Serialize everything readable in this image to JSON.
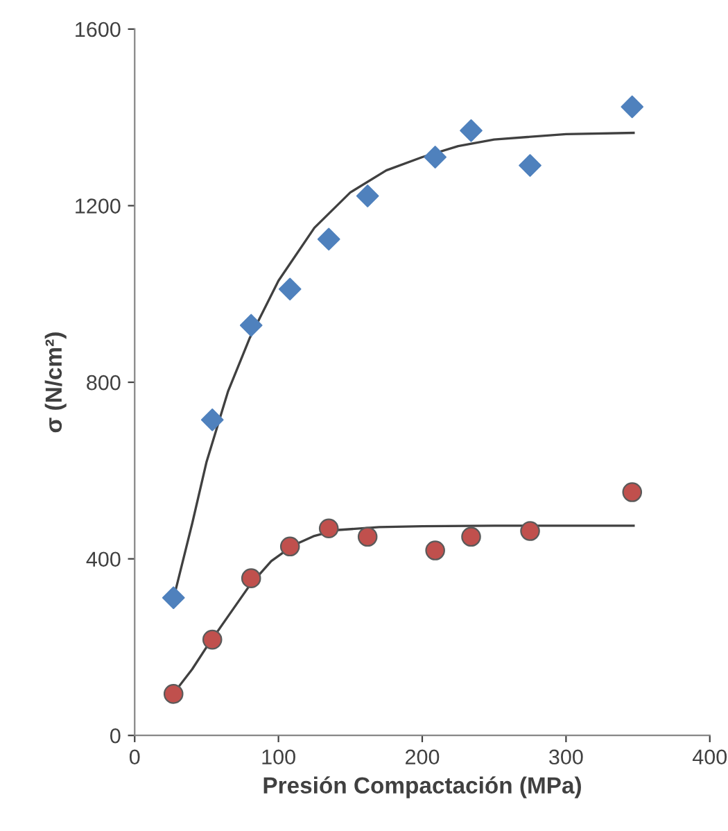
{
  "chart_data": {
    "type": "scatter",
    "xlabel": "Presión Compactación (MPa)",
    "ylabel": "σ (N/cm²)",
    "xlim": [
      0,
      400
    ],
    "ylim": [
      0,
      1600
    ],
    "xticks": [
      0,
      100,
      200,
      300,
      400
    ],
    "yticks": [
      0,
      400,
      800,
      1200,
      1600
    ],
    "grid": false,
    "legend": false,
    "series": [
      {
        "marker": "diamond",
        "color": "#4f81bd",
        "x": [
          27,
          54,
          81,
          108,
          135,
          162,
          209,
          234,
          275,
          346
        ],
        "values": [
          312,
          715,
          929,
          1011,
          1124,
          1222,
          1310,
          1370,
          1291,
          1424
        ]
      },
      {
        "marker": "circle",
        "color": "#c0504d",
        "x": [
          27,
          54,
          81,
          108,
          135,
          162,
          209,
          234,
          275,
          346
        ],
        "values": [
          94,
          217,
          356,
          428,
          469,
          450,
          419,
          450,
          463,
          551
        ]
      },
      {
        "type": "line",
        "marker": "none",
        "color": "#404040",
        "x": [
          27,
          40,
          50,
          65,
          80,
          100,
          125,
          150,
          175,
          200,
          225,
          250,
          300,
          347
        ],
        "values": [
          310,
          480,
          620,
          780,
          900,
          1030,
          1150,
          1230,
          1280,
          1310,
          1335,
          1350,
          1362,
          1365
        ]
      },
      {
        "type": "line",
        "marker": "none",
        "color": "#404040",
        "x": [
          27,
          40,
          50,
          65,
          80,
          95,
          110,
          125,
          140,
          170,
          200,
          250,
          347
        ],
        "values": [
          95,
          150,
          200,
          270,
          340,
          395,
          430,
          452,
          465,
          472,
          474,
          475,
          475
        ]
      }
    ]
  }
}
